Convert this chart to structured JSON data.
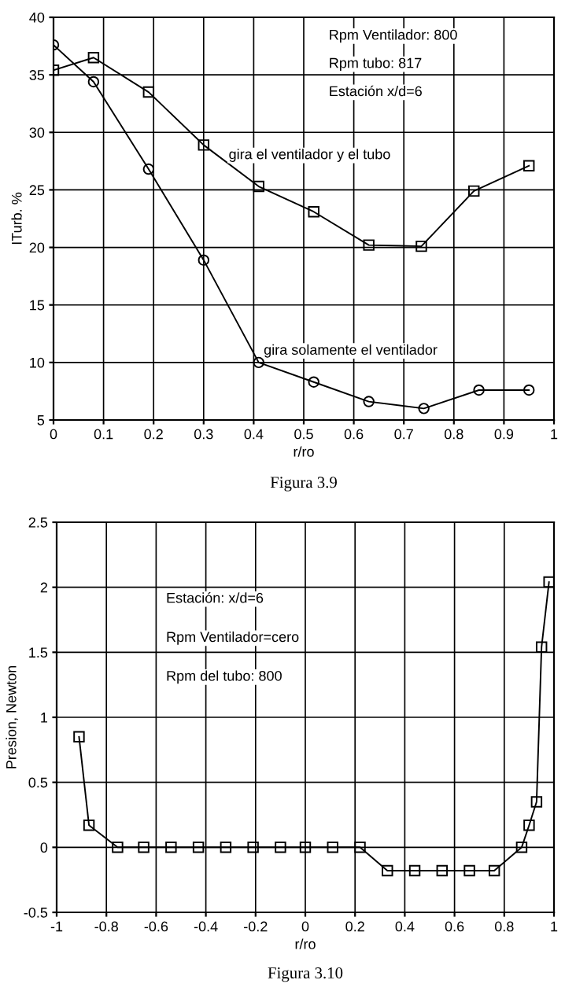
{
  "chart_data": [
    {
      "type": "line",
      "xlabel": "r/ro",
      "ylabel": "ITurb. %",
      "xlim": [
        0,
        1
      ],
      "ylim": [
        5,
        40
      ],
      "xticks": [
        0,
        0.1,
        0.2,
        0.3,
        0.4,
        0.5,
        0.6,
        0.7,
        0.8,
        0.9,
        1
      ],
      "yticks": [
        5,
        10,
        15,
        20,
        25,
        30,
        35,
        40
      ],
      "grid": true,
      "legend": false,
      "series": [
        {
          "color": "#000000",
          "marker": "square",
          "x": [
            0,
            0.08,
            0.19,
            0.3,
            0.41,
            0.52,
            0.63,
            0.735,
            0.84,
            0.95
          ],
          "values": [
            35.4,
            36.5,
            33.5,
            28.9,
            25.3,
            23.1,
            20.2,
            20.1,
            24.9,
            27.1
          ]
        },
        {
          "color": "#000000",
          "marker": "circle",
          "x": [
            0,
            0.08,
            0.19,
            0.3,
            0.41,
            0.52,
            0.63,
            0.74,
            0.85,
            0.95
          ],
          "values": [
            37.6,
            34.4,
            26.8,
            18.9,
            10.0,
            8.3,
            6.6,
            6.0,
            7.6,
            7.6
          ]
        }
      ],
      "annotations": [
        "Rpm Ventilador: 800",
        "Rpm tubo: 817",
        "Estación x/d=6",
        {
          "text": "gira el ventilador y el tubo",
          "x": 0.35,
          "y": 28
        },
        {
          "text": "gira solamente el ventilador",
          "x": 0.42,
          "y": 11
        },
        "Figura 3.9"
      ]
    },
    {
      "type": "line",
      "xlabel": "r/ro",
      "ylabel": "Presion, Newton",
      "xlim": [
        -1,
        1
      ],
      "ylim": [
        -0.5,
        2.5
      ],
      "xticks": [
        -1,
        -0.8,
        -0.6,
        -0.4,
        -0.2,
        0,
        0.2,
        0.4,
        0.6,
        0.8,
        1
      ],
      "yticks": [
        -0.5,
        0,
        0.5,
        1,
        1.5,
        2,
        2.5
      ],
      "grid": true,
      "legend": false,
      "series": [
        {
          "color": "#000000",
          "marker": "square",
          "x": [
            -0.91,
            -0.87,
            -0.755,
            -0.65,
            -0.54,
            -0.43,
            -0.32,
            -0.21,
            -0.1,
            0.0,
            0.11,
            0.22,
            0.33,
            0.44,
            0.55,
            0.66,
            0.76,
            0.87,
            0.9,
            0.93,
            0.95,
            0.98
          ],
          "values": [
            0.85,
            0.17,
            0,
            0,
            0,
            0,
            0,
            0,
            0,
            0,
            0,
            0,
            -0.18,
            -0.18,
            -0.18,
            -0.18,
            -0.18,
            0,
            0.17,
            0.35,
            1.54,
            2.04
          ]
        }
      ],
      "annotations": [
        "Estación: x/d=6",
        "Rpm Ventilador=cero",
        "Rpm del tubo: 800",
        "Figura 3.10"
      ]
    }
  ]
}
